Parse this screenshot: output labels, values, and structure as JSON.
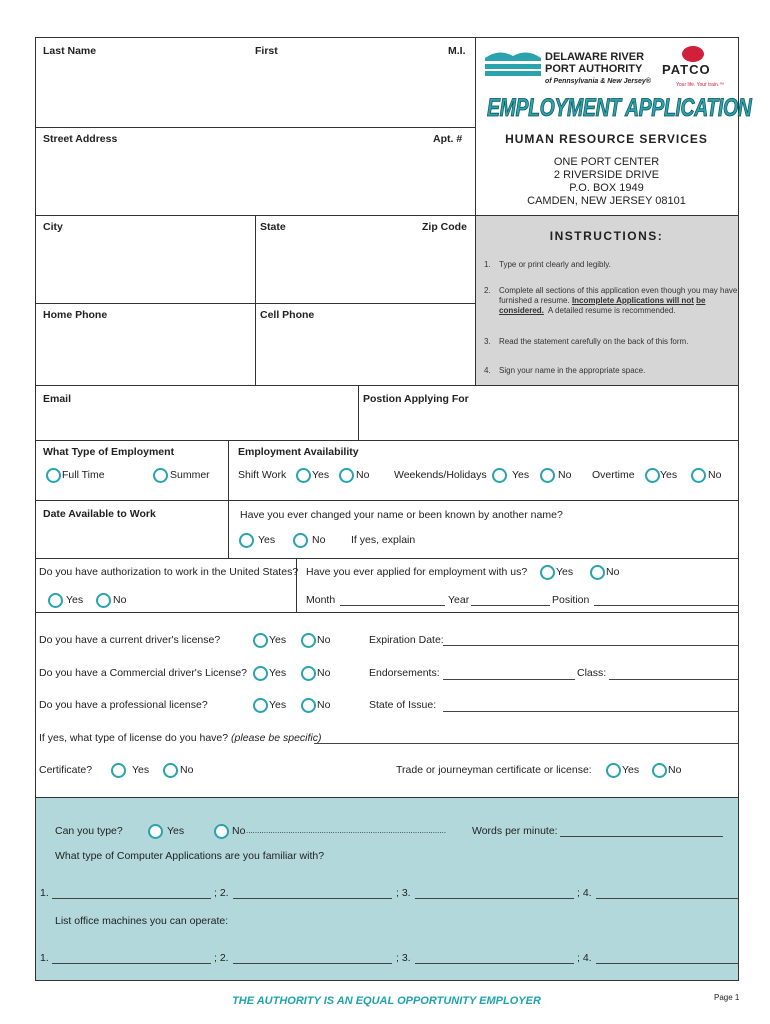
{
  "header": {
    "org_line1": "DELAWARE RIVER",
    "org_line2": "PORT AUTHORITY",
    "org_line3": "of Pennsylvania & New Jersey®",
    "patco": "PATCO",
    "patco_tagline": "Your life. Your train.™",
    "title": "EMPLOYMENT APPLICATION",
    "department": "HUMAN RESOURCE SERVICES",
    "address": [
      "ONE PORT CENTER",
      "2 RIVERSIDE DRIVE",
      "P.O. BOX 1949",
      "CAMDEN, NEW JERSEY 08101"
    ],
    "brand_color": "#2aa3ad",
    "patco_color": "#d0203a"
  },
  "instructions": {
    "title": "INSTRUCTIONS:",
    "items": [
      {
        "n": "1.",
        "text": "Type or print clearly and legibly."
      },
      {
        "n": "2.",
        "text_a": "Complete all sections of this application even though you may have furnished a resume.",
        "u1": "Incomplete Applications will not",
        "u2": "be",
        "u3": "considered.",
        "text_b": "A detailed resume is recommended."
      },
      {
        "n": "3.",
        "text": "Read the statement carefully on the back of this form."
      },
      {
        "n": "4.",
        "text": "Sign your name in the appropriate space."
      }
    ]
  },
  "fields": {
    "last_name": "Last Name",
    "first": "First",
    "mi": "M.I.",
    "street": "Street Address",
    "apt": "Apt. #",
    "city": "City",
    "state": "State",
    "zip": "Zip Code",
    "home_phone": "Home Phone",
    "cell_phone": "Cell Phone",
    "email": "Email",
    "position": "Postion Applying For"
  },
  "employment": {
    "type_label": "What Type of Employment",
    "full_time": "Full Time",
    "summer": "Summer",
    "availability_label": "Employment Availability",
    "shift_work": "Shift Work",
    "weekends": "Weekends/Holidays",
    "overtime": "Overtime",
    "date_available": "Date Available to Work",
    "name_change_q": "Have you ever changed your name or been known by another name?",
    "if_yes_explain": "If yes, explain",
    "authorization_q": "Do you have authorization to work in the United States?",
    "applied_q": "Have you ever applied for employment with us?",
    "month": "Month",
    "year": "Year",
    "position": "Position"
  },
  "license": {
    "drivers_q": "Do you have a current driver's license?",
    "expiration": "Expiration Date:",
    "commercial_q": "Do you have a Commercial driver's License?",
    "endorsements": "Endorsements:",
    "class": "Class:",
    "professional_q": "Do you have a professional license?",
    "state_issue": "State of Issue:",
    "type_q": "If yes, what type of license do you have?",
    "type_q_italic": "(please be specific)",
    "certificate": "Certificate?",
    "trade": "Trade or journeyman certificate or license:"
  },
  "skills": {
    "type_q": "Can you type?",
    "dots": "..........................................................................................",
    "wpm": "Words per minute:",
    "computer_q": "What type of Computer Applications are you familiar with?",
    "machines_q": "List office machines you can operate:",
    "n1": "1.",
    "n2": "; 2.",
    "n3": "; 3.",
    "n4": "; 4.",
    "section_color": "#b3d8dc"
  },
  "yes": "Yes",
  "no": "No",
  "footer": {
    "eoe": "THE AUTHORITY IS AN EQUAL OPPORTUNITY EMPLOYER",
    "page": "Page 1"
  }
}
